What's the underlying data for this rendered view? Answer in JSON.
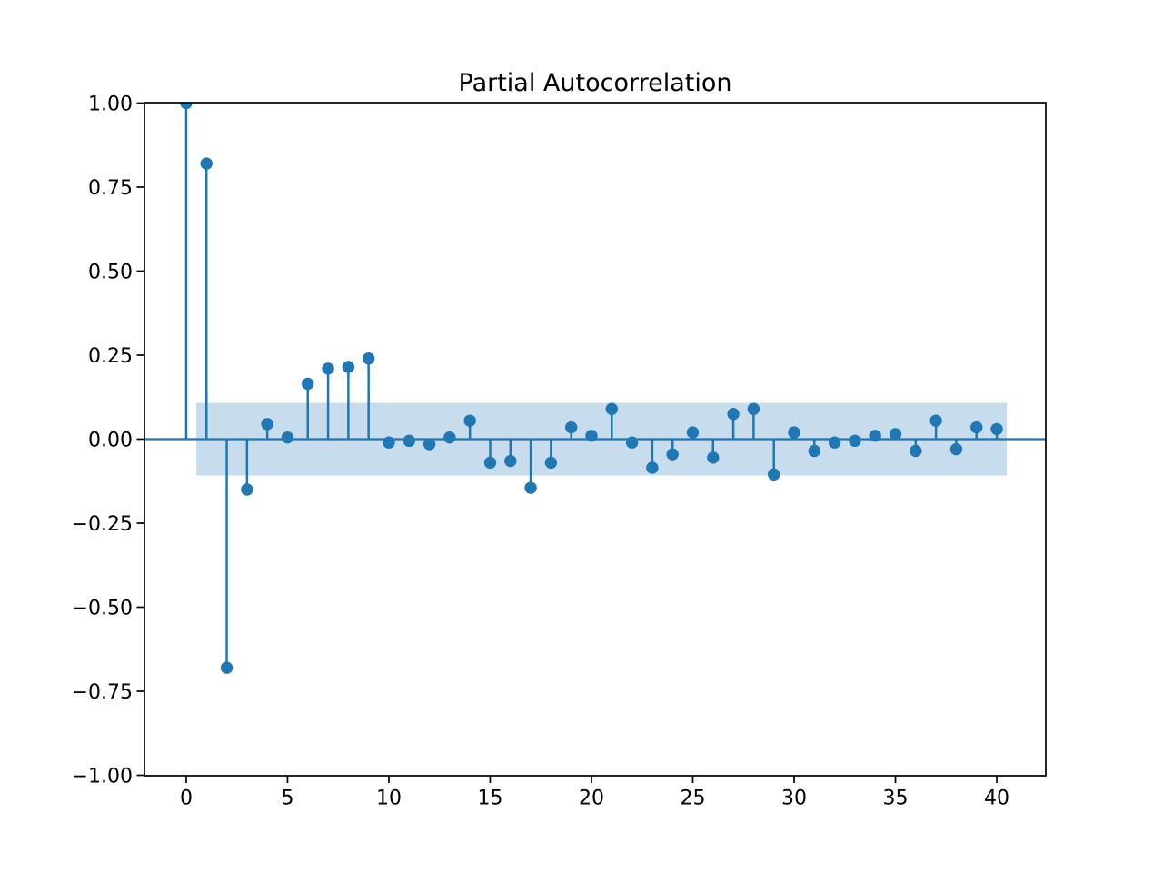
{
  "chart_data": {
    "type": "stem",
    "title": "Partial Autocorrelation",
    "x": [
      0,
      1,
      2,
      3,
      4,
      5,
      6,
      7,
      8,
      9,
      10,
      11,
      12,
      13,
      14,
      15,
      16,
      17,
      18,
      19,
      20,
      21,
      22,
      23,
      24,
      25,
      26,
      27,
      28,
      29,
      30,
      31,
      32,
      33,
      34,
      35,
      36,
      37,
      38,
      39,
      40
    ],
    "values": [
      1.0,
      0.82,
      -0.68,
      -0.15,
      0.045,
      0.005,
      0.165,
      0.21,
      0.215,
      0.24,
      -0.01,
      -0.005,
      -0.015,
      0.005,
      0.055,
      -0.07,
      -0.065,
      -0.145,
      -0.07,
      0.035,
      0.01,
      0.09,
      -0.01,
      -0.085,
      -0.045,
      0.02,
      -0.055,
      0.075,
      0.09,
      -0.105,
      0.02,
      -0.035,
      -0.01,
      -0.005,
      0.01,
      0.015,
      -0.035,
      0.055,
      -0.03,
      0.035,
      0.03
    ],
    "xlabel": "",
    "ylabel": "",
    "xlim": [
      -2.06,
      42.42
    ],
    "ylim": [
      -1.0,
      1.0
    ],
    "xticks": [
      0,
      5,
      10,
      15,
      20,
      25,
      30,
      35,
      40
    ],
    "xtick_labels": [
      "0",
      "5",
      "10",
      "15",
      "20",
      "25",
      "30",
      "35",
      "40"
    ],
    "ytick_values": [
      1.0,
      0.75,
      0.5,
      0.25,
      0.0,
      -0.25,
      -0.5,
      -0.75,
      -1.0
    ],
    "ytick_labels": [
      "1.00",
      "0.75",
      "0.50",
      "0.25",
      "0.00",
      "−0.25",
      "−0.50",
      "−0.75",
      "−1.00"
    ],
    "confidence_band": {
      "hi": 0.108,
      "lo": -0.108,
      "x_start": 0.5,
      "x_end": 40.5
    },
    "zero_line": 0.0,
    "grid": false,
    "legend": null,
    "colors": {
      "stem": "#1f77b4",
      "marker": "#1f77b4",
      "band": "#c7dcec",
      "zero_line": "#1f77b4",
      "spine": "#000000",
      "background": "#ffffff"
    }
  }
}
